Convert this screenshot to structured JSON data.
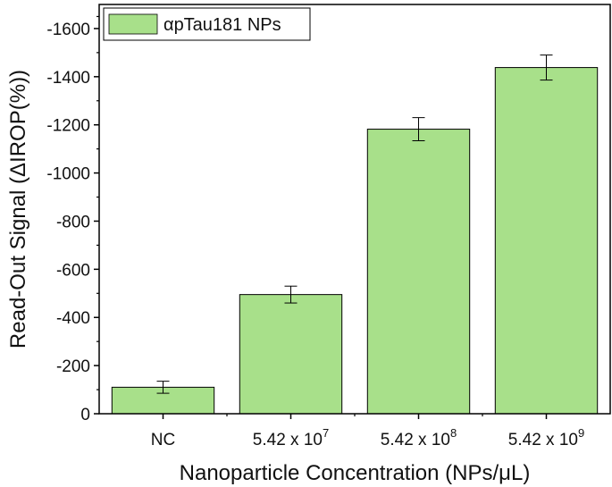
{
  "chart_data": {
    "type": "bar",
    "title": "",
    "xlabel": "Nanoparticle Concentration (NPs/μL)",
    "ylabel": "Read-Out Signal (ΔIROP(%))",
    "categories": [
      "NC",
      "5.42 x 10",
      "5.42 x 10",
      "5.42 x 10"
    ],
    "category_exponents": [
      "",
      "7",
      "8",
      "9"
    ],
    "series": [
      {
        "name": "αpTau181 NPs",
        "values": [
          -110,
          -495,
          -1182,
          -1438
        ],
        "errors": [
          25,
          35,
          48,
          52
        ],
        "color": "#a8e08a"
      }
    ],
    "ylim": [
      0,
      -1700
    ],
    "yticks": [
      0,
      -200,
      -400,
      -600,
      -800,
      -1000,
      -1200,
      -1400,
      -1600
    ],
    "ytick_labels": [
      "0",
      "-200",
      "-400",
      "-600",
      "-800",
      "-1000",
      "-1200",
      "-1400",
      "-1600"
    ],
    "grid": false,
    "legend_position": "top-left"
  }
}
